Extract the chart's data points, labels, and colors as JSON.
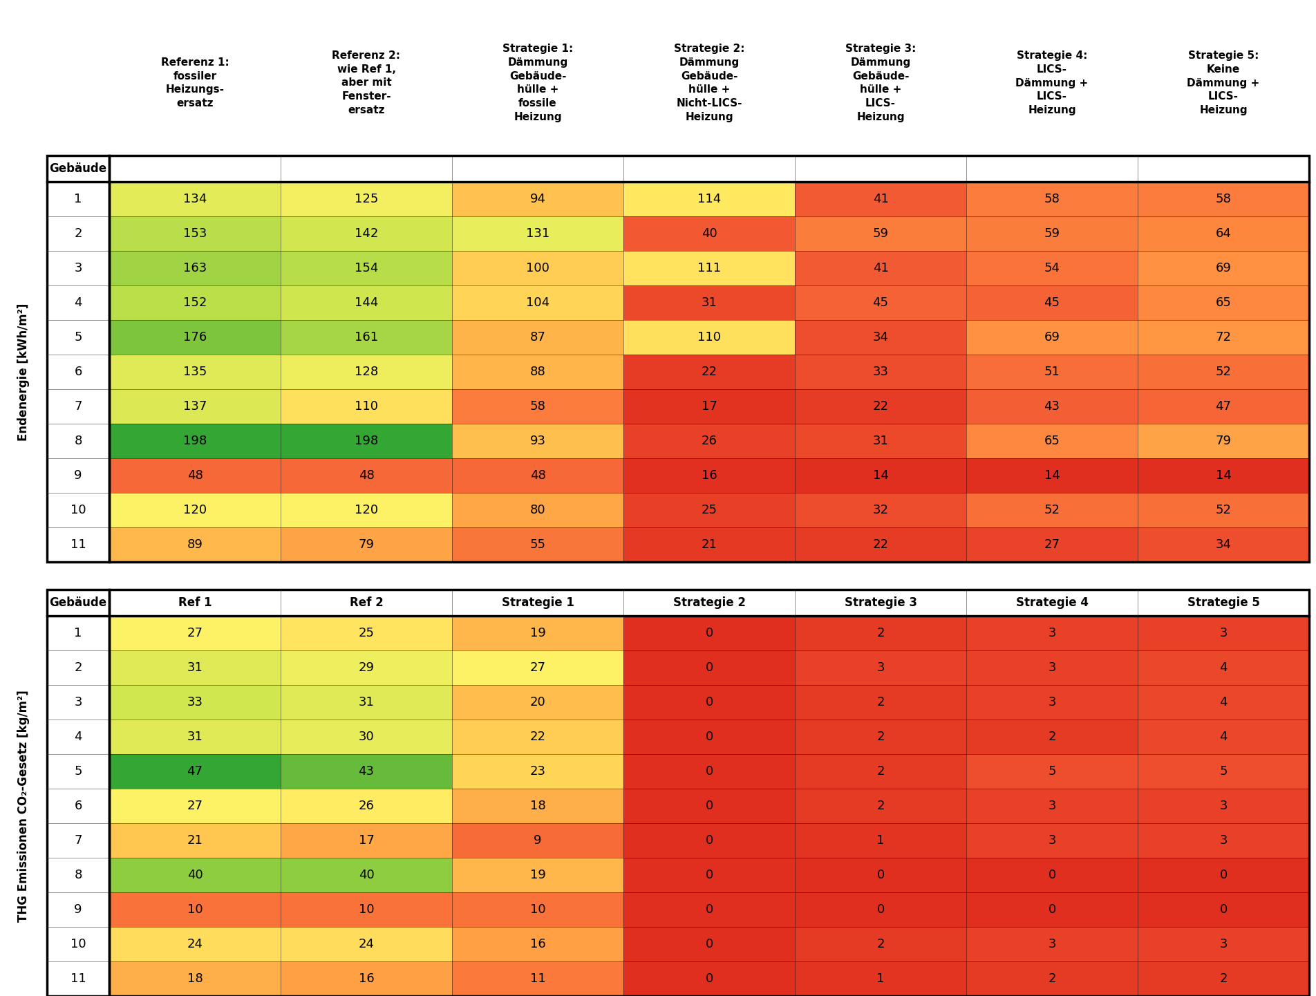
{
  "top_headers": [
    "Referenz 1:\nfossiler\nHeizungs-\nersatz",
    "Referenz 2:\nwie Ref 1,\naber mit\nFenster-\nersatz",
    "Strategie 1:\nDämmung\nGebäude-\nhülle +\nfossile\nHeizung",
    "Strategie 2:\nDämmung\nGebäude-\nhülle +\nNicht-LICS-\nHeizung",
    "Strategie 3:\nDämmung\nGebäude-\nhülle +\nLICS-\nHeizung",
    "Strategie 4:\nLICS-\nDämmung +\nLICS-\nHeizung",
    "Strategie 5:\nKeine\nDämmung +\nLICS-\nHeizung"
  ],
  "short_headers": [
    "Ref 1",
    "Ref 2",
    "Strategie 1",
    "Strategie 2",
    "Strategie 3",
    "Strategie 4",
    "Strategie 5"
  ],
  "buildings": [
    1,
    2,
    3,
    4,
    5,
    6,
    7,
    8,
    9,
    10,
    11
  ],
  "table1_data": [
    [
      134,
      125,
      94,
      114,
      41,
      58,
      58
    ],
    [
      153,
      142,
      131,
      40,
      59,
      59,
      64
    ],
    [
      163,
      154,
      100,
      111,
      41,
      54,
      69
    ],
    [
      152,
      144,
      104,
      31,
      45,
      45,
      65
    ],
    [
      176,
      161,
      87,
      110,
      34,
      69,
      72
    ],
    [
      135,
      128,
      88,
      22,
      33,
      51,
      52
    ],
    [
      137,
      110,
      58,
      17,
      22,
      43,
      47
    ],
    [
      198,
      198,
      93,
      26,
      31,
      65,
      79
    ],
    [
      48,
      48,
      48,
      16,
      14,
      14,
      14
    ],
    [
      120,
      120,
      80,
      25,
      32,
      52,
      52
    ],
    [
      89,
      79,
      55,
      21,
      22,
      27,
      34
    ]
  ],
  "table2_data": [
    [
      27,
      25,
      19,
      0,
      2,
      3,
      3
    ],
    [
      31,
      29,
      27,
      0,
      3,
      3,
      4
    ],
    [
      33,
      31,
      20,
      0,
      2,
      3,
      4
    ],
    [
      31,
      30,
      22,
      0,
      2,
      2,
      4
    ],
    [
      47,
      43,
      23,
      0,
      2,
      5,
      5
    ],
    [
      27,
      26,
      18,
      0,
      2,
      3,
      3
    ],
    [
      21,
      17,
      9,
      0,
      1,
      3,
      3
    ],
    [
      40,
      40,
      19,
      0,
      0,
      0,
      0
    ],
    [
      10,
      10,
      10,
      0,
      0,
      0,
      0
    ],
    [
      24,
      24,
      16,
      0,
      2,
      3,
      3
    ],
    [
      18,
      16,
      11,
      0,
      1,
      2,
      2
    ]
  ],
  "table1_label": "Endenergie [kWh/m²]",
  "table2_label": "THG Emissionen CO₂-Gesetz [kg/m²]",
  "gebaeude_label": "Gebäude",
  "t1_vmin": 14,
  "t1_vmax": 198,
  "t2_vmin": 0,
  "t2_vmax": 47
}
